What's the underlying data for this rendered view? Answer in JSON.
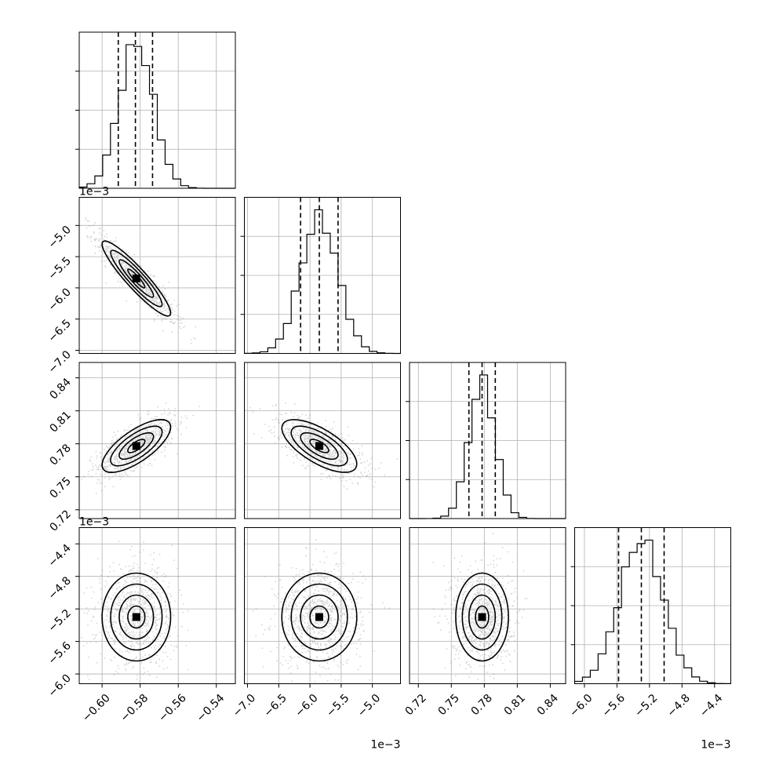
{
  "chart_data": {
    "type": "corner",
    "colors": {
      "frame": "#000000",
      "grid": "#b0b0b0",
      "scatter": "#888888",
      "density": "#000000"
    },
    "grid": true,
    "parameters": [
      {
        "name": "",
        "center": -0.582,
        "sigma": 0.009,
        "range": [
          -0.612,
          -0.53
        ],
        "ticks": [
          -0.6,
          -0.58,
          -0.56,
          -0.54
        ],
        "tick_labels": [
          "−0.60",
          "−0.58",
          "−0.56",
          "−0.54"
        ],
        "quantiles": [
          -0.5915,
          -0.5825,
          -0.5735
        ],
        "offset": ""
      },
      {
        "name": "",
        "center": -5.85,
        "sigma": 0.3,
        "range": [
          -7.05,
          -4.55
        ],
        "ticks": [
          -7.0,
          -6.5,
          -6.0,
          -5.5,
          -5.0
        ],
        "tick_labels": [
          "−7.0",
          "−6.5",
          "−6.0",
          "−5.5",
          "−5.0"
        ],
        "quantiles": [
          -6.15,
          -5.85,
          -5.55
        ],
        "offset": "1e−3"
      },
      {
        "name": "",
        "center": 0.778,
        "sigma": 0.012,
        "range": [
          0.712,
          0.854
        ],
        "ticks": [
          0.72,
          0.75,
          0.78,
          0.81,
          0.84
        ],
        "tick_labels": [
          "0.72",
          "0.75",
          "0.78",
          "0.81",
          "0.84"
        ],
        "quantiles": [
          0.766,
          0.778,
          0.79
        ],
        "offset": ""
      },
      {
        "name": "",
        "center": -5.3,
        "sigma": 0.27,
        "range": [
          -6.12,
          -4.2
        ],
        "ticks": [
          -6.0,
          -5.6,
          -5.2,
          -4.8,
          -4.4
        ],
        "tick_labels": [
          "−6.0",
          "−5.6",
          "−5.2",
          "−4.8",
          "−4.4"
        ],
        "quantiles": [
          -5.58,
          -5.3,
          -5.02
        ],
        "offset": "1e−3"
      }
    ],
    "correlations": [
      {
        "pair": [
          0,
          1
        ],
        "rho": -0.92
      },
      {
        "pair": [
          0,
          2
        ],
        "rho": 0.72
      },
      {
        "pair": [
          1,
          2
        ],
        "rho": -0.68
      },
      {
        "pair": [
          0,
          3
        ],
        "rho": 0.0
      },
      {
        "pair": [
          1,
          3
        ],
        "rho": 0.0
      },
      {
        "pair": [
          2,
          3
        ],
        "rho": 0.0
      }
    ],
    "contour_levels_sigma": [
      0.5,
      1.0,
      1.5,
      2.0
    ]
  }
}
